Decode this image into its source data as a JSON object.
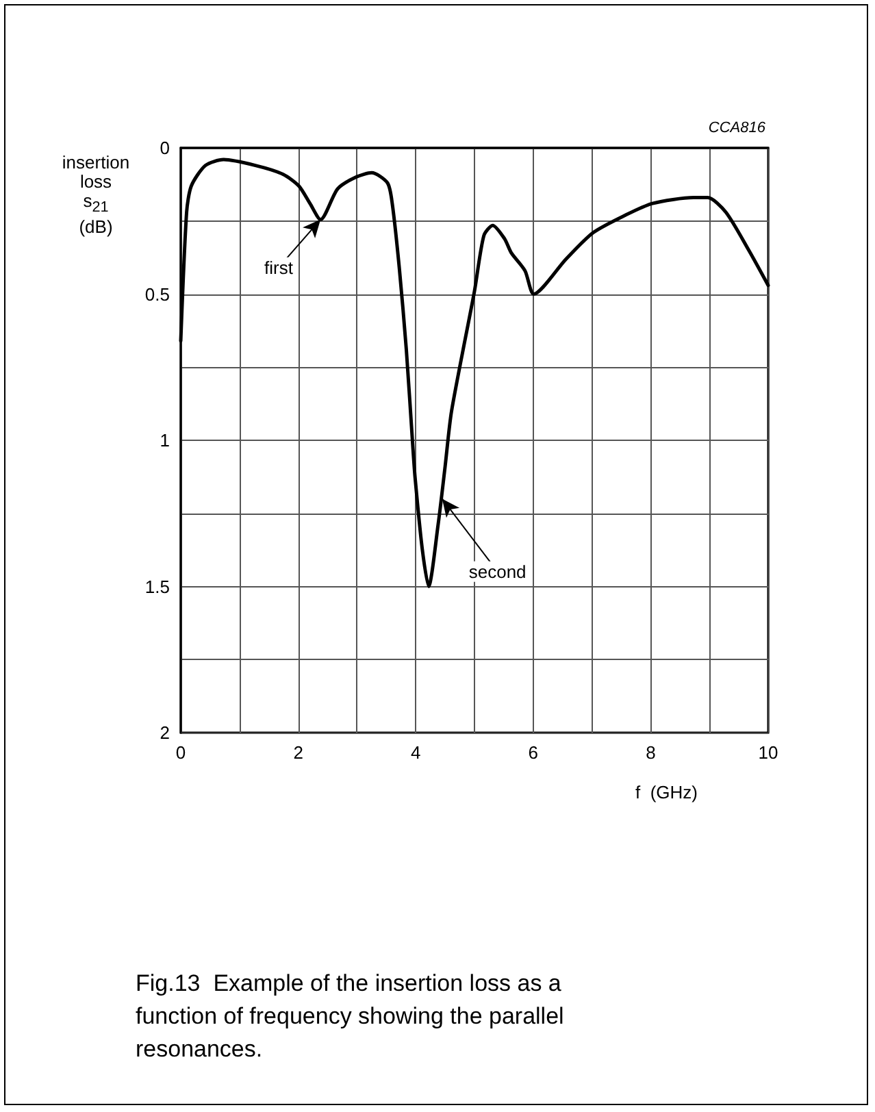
{
  "chart_data": {
    "type": "line",
    "xlabel": "f  (GHz)",
    "ylabel": "insertion loss s$_{21}$ (dB)",
    "xlim": [
      0,
      10
    ],
    "ylim": [
      2,
      0
    ],
    "xticks": [
      0,
      {
        "value": 1,
        "label": null
      },
      2,
      {
        "value": 3,
        "label": null
      },
      4,
      {
        "value": 5,
        "label": null
      },
      6,
      {
        "value": 7,
        "label": null
      },
      8,
      {
        "value": 9,
        "label": null
      },
      10
    ],
    "yticks": [
      0,
      {
        "value": 0.25,
        "label": null
      },
      0.5,
      {
        "value": 0.75,
        "label": null
      },
      1,
      {
        "value": 1.25,
        "label": null
      },
      1.5,
      {
        "value": 1.75,
        "label": null
      },
      2
    ],
    "grid": true,
    "marker": "none",
    "line_style": "solid",
    "series": [
      {
        "color": "#000000",
        "x": [
          0,
          0.1,
          0.18,
          0.42,
          0.73,
          1.27,
          1.74,
          2.01,
          2.2,
          2.38,
          2.67,
          2.98,
          3.25,
          3.52,
          3.6,
          3.72,
          3.84,
          3.95,
          3.99,
          4.11,
          4.22,
          4.38,
          4.5,
          4.61,
          5.0,
          5.16,
          5.31,
          5.51,
          5.63,
          5.86,
          6.01,
          6.56,
          7.02,
          7.57,
          8.03,
          8.73,
          8.97,
          9.28,
          9.67,
          10
        ],
        "values": [
          0.66,
          0.22,
          0.13,
          0.06,
          0.04,
          0.06,
          0.09,
          0.13,
          0.19,
          0.245,
          0.14,
          0.1,
          0.085,
          0.12,
          0.19,
          0.41,
          0.69,
          1.02,
          1.13,
          1.37,
          1.5,
          1.29,
          1.09,
          0.9,
          0.49,
          0.3,
          0.265,
          0.31,
          0.36,
          0.42,
          0.5,
          0.38,
          0.29,
          0.23,
          0.19,
          0.17,
          0.17,
          0.22,
          0.35,
          0.47
        ]
      }
    ],
    "annotations": [
      {
        "text": "first",
        "x": 2.38,
        "y": 0.245
      },
      {
        "text": "second",
        "x": 4.45,
        "y": 1.2
      },
      "CCA816",
      "Fig.13  Example of the insertion loss as a function of frequency showing the parallel resonances."
    ]
  }
}
